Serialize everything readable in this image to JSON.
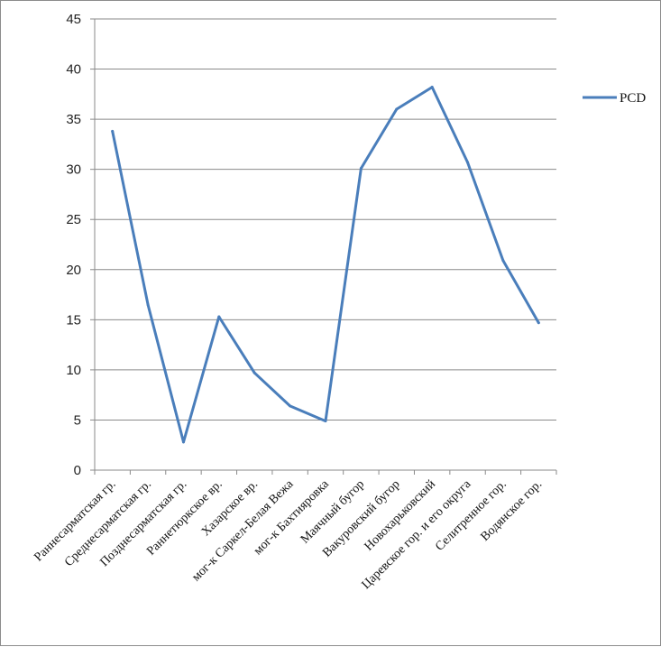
{
  "chart_data": {
    "type": "line",
    "categories": [
      "Раннесарматская гр.",
      "Среднесарматская гр.",
      "Позднесарматская гр.",
      "Раннетюркское вр.",
      "Хазарское вр.",
      "мог-к Саркел-Белая Вежа",
      "мог-к Бахтияровка",
      "Маячный бугор",
      "Вакуровский бугор",
      "Новохарьковский",
      "Царевское гор. и его округа",
      "Селитренное гор.",
      "Водянское гор."
    ],
    "series": [
      {
        "name": "PCD",
        "values": [
          33.8,
          16.5,
          2.8,
          15.3,
          9.7,
          6.4,
          4.9,
          30.1,
          36.0,
          38.2,
          30.7,
          20.9,
          14.7
        ]
      }
    ],
    "ylim": [
      0,
      45
    ],
    "yticks": [
      "0",
      "5",
      "10",
      "15",
      "20",
      "25",
      "30",
      "35",
      "40",
      "45"
    ],
    "grid": "horizontal",
    "legend": "right",
    "line_color": "#4a7ebb"
  }
}
